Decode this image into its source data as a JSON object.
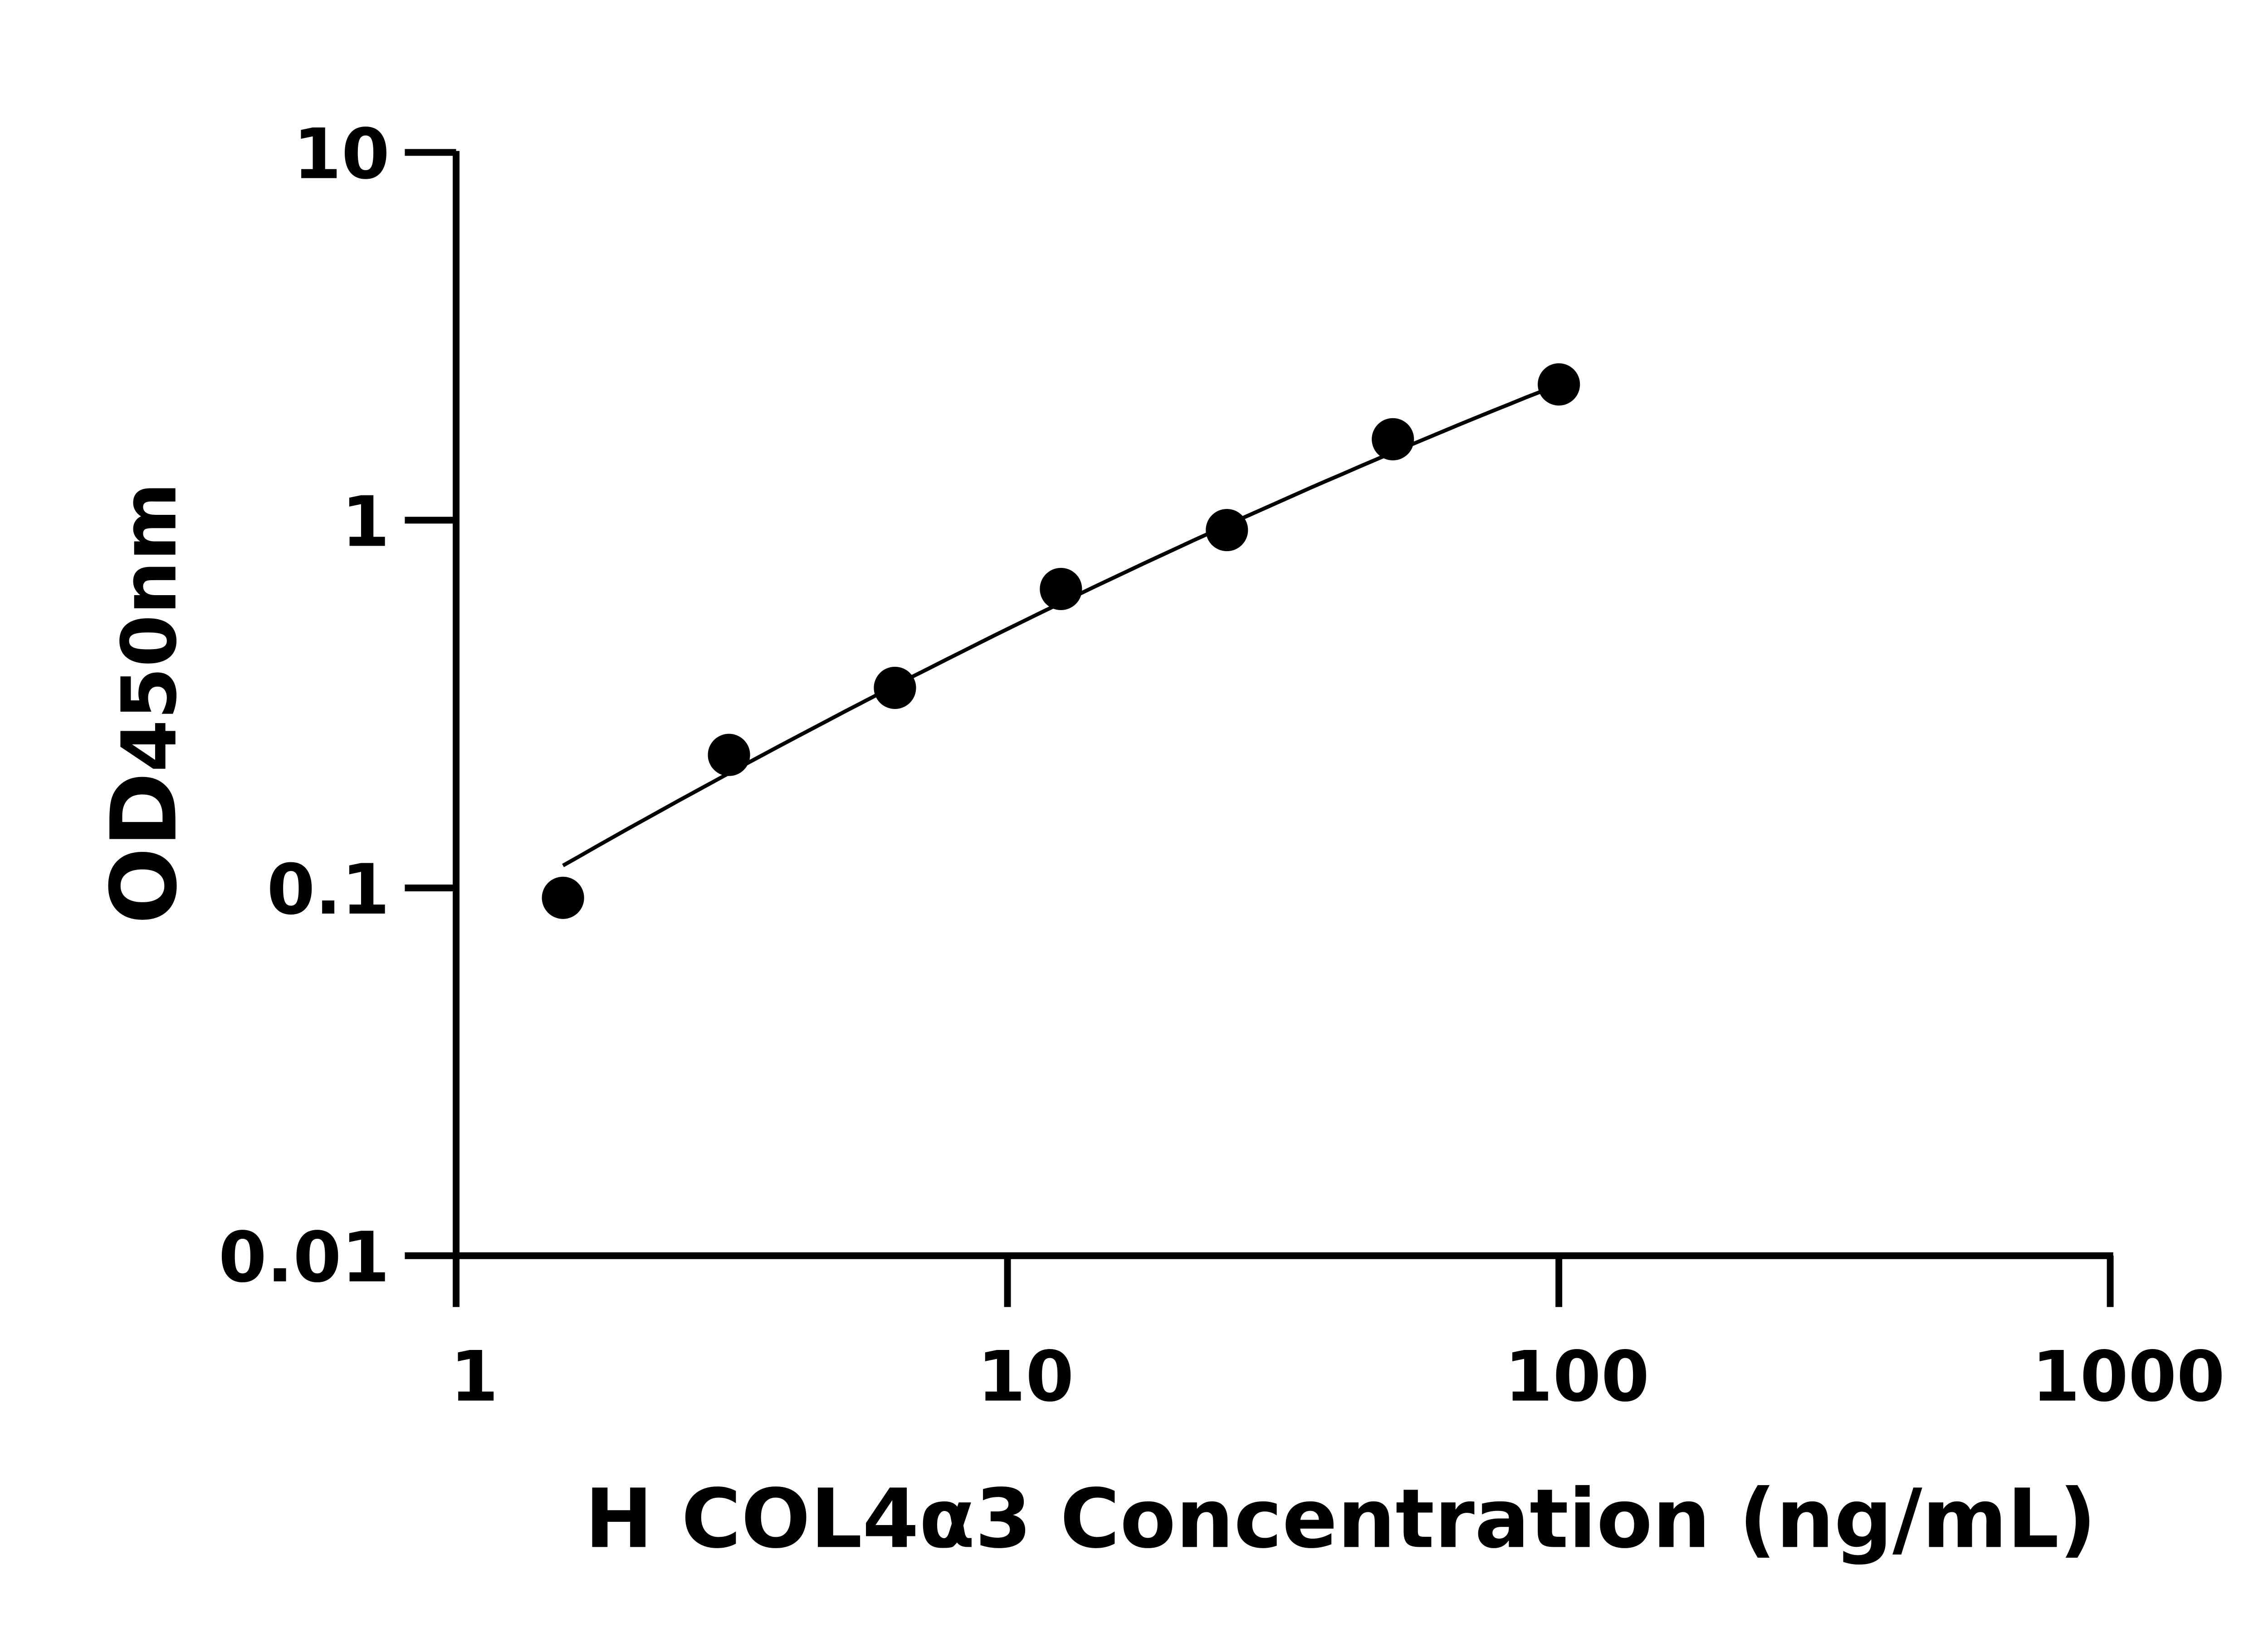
{
  "chart_data": {
    "type": "scatter",
    "title": "",
    "xlabel": "H COL4α3 Concentration (ng/mL)",
    "ylabel_main": "OD",
    "ylabel_sub": "450nm",
    "x_scale": "log",
    "y_scale": "log",
    "xlim": [
      1,
      1000
    ],
    "ylim": [
      0.01,
      10
    ],
    "x_ticks": [
      "1",
      "10",
      "100",
      "1000"
    ],
    "y_ticks": [
      "0.01",
      "0.1",
      "1",
      "10"
    ],
    "grid": false,
    "legend": "none",
    "series": [
      {
        "x": [
          1.5625,
          3.125,
          6.25,
          12.5,
          25,
          50,
          100
        ],
        "y": [
          0.094,
          0.23,
          0.35,
          0.65,
          0.94,
          1.66,
          2.34
        ]
      }
    ],
    "fit_curve": {
      "x": [
        1.5625,
        100
      ],
      "y": [
        0.115,
        2.34
      ]
    },
    "colors": {
      "marker": "#000000",
      "line": "#000000",
      "axis": "#000000"
    }
  }
}
